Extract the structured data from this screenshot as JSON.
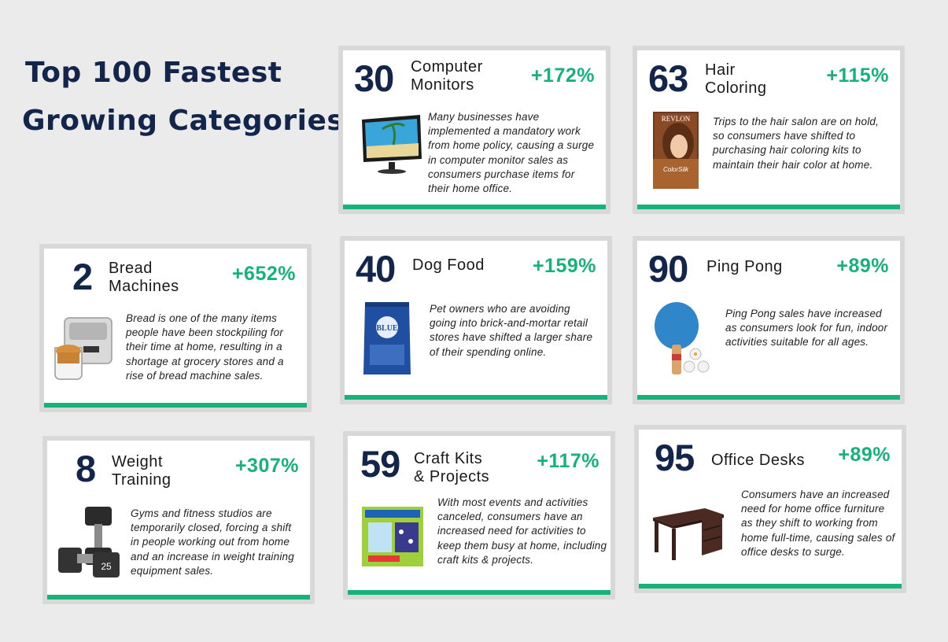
{
  "title": {
    "line1": "Top 100 Fastest",
    "line2": "Growing Categories"
  },
  "accent_color": "#17b27a",
  "rank_color": "#13254a",
  "cards": {
    "computer_monitors": {
      "rank": "30",
      "name": "Computer\nMonitors",
      "change": "+172%",
      "description": "Many businesses have implemented a mandatory work from home policy, causing a surge in computer monitor sales as consumers purchase items for their home office.",
      "icon": "computer-monitor-icon"
    },
    "hair_coloring": {
      "rank": "63",
      "name": "Hair\nColoring",
      "change": "+115%",
      "description": "Trips to the hair salon are on hold, so consumers have shifted to purchasing hair coloring kits to maintain their hair color at home.",
      "icon": "hair-dye-box-icon",
      "product_text": "REVLON"
    },
    "bread_machines": {
      "rank": "2",
      "name": "Bread\nMachines",
      "change": "+652%",
      "description": "Bread is one of the many items people have been stockpiling for their time at home, resulting in a shortage at grocery stores and a rise of bread machine sales.",
      "icon": "bread-machine-icon"
    },
    "dog_food": {
      "rank": "40",
      "name": "Dog Food",
      "change": "+159%",
      "description": "Pet owners who are avoiding going into brick-and-mortar retail stores have shifted a larger share of their spending online.",
      "icon": "dog-food-bag-icon",
      "product_text": "BLUE"
    },
    "ping_pong": {
      "rank": "90",
      "name": "Ping Pong",
      "change": "+89%",
      "description": "Ping Pong sales have increased as consumers look for fun, indoor activities suitable for all ages.",
      "icon": "ping-pong-paddle-icon"
    },
    "weight_training": {
      "rank": "8",
      "name": "Weight\nTraining",
      "change": "+307%",
      "description": "Gyms and fitness studios are temporarily closed, forcing a shift in people working out from home and an increase in weight training equipment sales.",
      "icon": "dumbbell-icon",
      "product_text": "25"
    },
    "craft_kits": {
      "rank": "59",
      "name": "Craft Kits\n& Projects",
      "change": "+117%",
      "description": "With most events and activities canceled, consumers have an increased need for activities to keep them busy at home, including craft kits & projects.",
      "icon": "craft-kit-box-icon"
    },
    "office_desks": {
      "rank": "95",
      "name": "Office Desks",
      "change": "+89%",
      "description": "Consumers have an increased need for home office furniture as they shift to working from home full-time, causing sales of office desks to surge.",
      "icon": "office-desk-icon"
    }
  }
}
